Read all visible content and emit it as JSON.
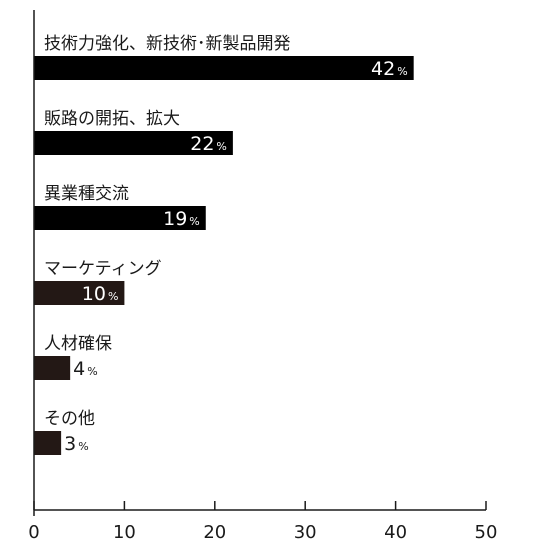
{
  "chart_data": {
    "type": "bar",
    "orientation": "horizontal",
    "categories": [
      "技術力強化、新技術･新製品開発",
      "販路の開拓、拡大",
      "異業種交流",
      "マーケティング",
      "人材確保",
      "その他"
    ],
    "values": [
      42,
      22,
      19,
      10,
      4,
      3
    ],
    "value_unit": "%",
    "xlim": [
      0,
      50
    ],
    "xticks": [
      0,
      10,
      20,
      30,
      40,
      50
    ],
    "title": "",
    "xlabel": "",
    "ylabel": "",
    "grid": false,
    "legend": "none",
    "colors": {
      "bar_dark": "#000000",
      "bar_brown": "#231815",
      "label_inside": "#ffffff",
      "label_outside": "#1a1a1a",
      "axis": "#1a1a1a"
    }
  }
}
